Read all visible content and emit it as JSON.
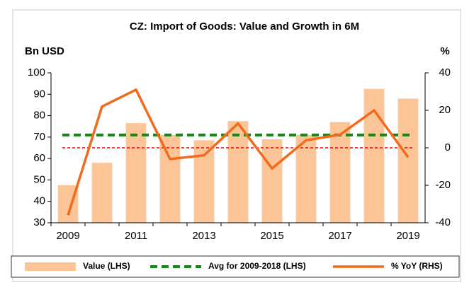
{
  "chart_data": {
    "type": "bar-line",
    "title": "CZ: Import of Goods: Value and Growth in 6M",
    "y_label": "Bn USD",
    "y2_label": "%",
    "categories": [
      "2009",
      null,
      "2011",
      null,
      "2013",
      null,
      "2015",
      null,
      "2017",
      null,
      "2019"
    ],
    "ylim": [
      30,
      100
    ],
    "yticks": [
      30,
      40,
      50,
      60,
      70,
      80,
      90,
      100
    ],
    "y2lim": [
      -40,
      40
    ],
    "y2ticks": [
      -40,
      -20,
      0,
      20,
      40
    ],
    "series": [
      {
        "name": "Value (LHS)",
        "type": "bar",
        "color": "#fbc597",
        "values": [
          47.5,
          58,
          76.5,
          71,
          68.5,
          77.5,
          69,
          71,
          77,
          92.5,
          88
        ]
      },
      {
        "name": "Avg for 2009-2018 (LHS)",
        "type": "hline",
        "color": "#138a13",
        "value": 71
      },
      {
        "name": "% YoY (RHS)",
        "type": "line",
        "axis": "y2",
        "color": "#f26b1d",
        "values": [
          -36,
          22,
          31,
          -6,
          -4,
          13,
          -11,
          4,
          7,
          20,
          -5
        ]
      }
    ],
    "reference_line": {
      "axis": "y2",
      "value": 0,
      "color": "#ff0000"
    }
  }
}
